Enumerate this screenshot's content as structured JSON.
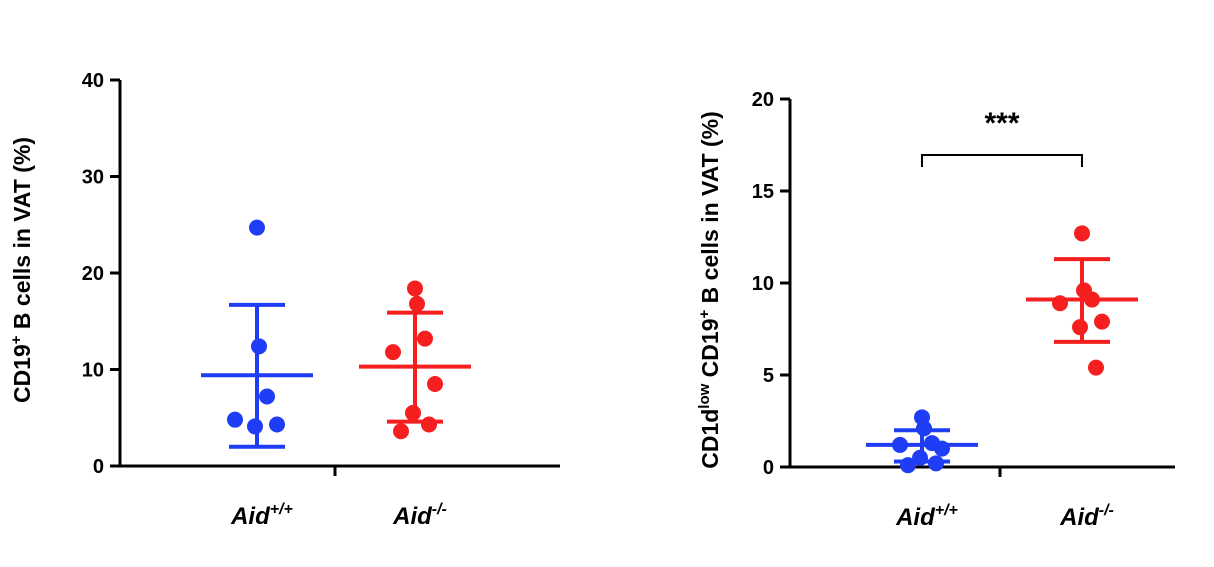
{
  "chart_data": [
    {
      "type": "scatter",
      "ylabel": [
        {
          "text": "CD19"
        },
        {
          "text": "+",
          "sup": true
        },
        {
          "text": " B cells in VAT (%)"
        }
      ],
      "categories": [
        "Aid",
        "Aid"
      ],
      "category_superscripts": [
        "+/+",
        "-/-"
      ],
      "ylim": [
        0,
        40
      ],
      "yticks": [
        0,
        10,
        20,
        30,
        40
      ],
      "series": [
        {
          "color": "#1f3df5",
          "values": [
            24.7,
            12.4,
            7.2,
            4.8,
            4.3,
            4.1
          ],
          "mean": 9.4,
          "error_low": 2.0,
          "error_high": 16.7
        },
        {
          "color": "#f51f1f",
          "values": [
            18.4,
            16.8,
            13.2,
            11.8,
            8.5,
            5.5,
            4.3,
            3.6
          ],
          "mean": 10.3,
          "error_low": 4.6,
          "error_high": 15.9
        }
      ]
    },
    {
      "type": "scatter",
      "ylabel": [
        {
          "text": "CD1d"
        },
        {
          "text": "low",
          "sup": true
        },
        {
          "text": " CD19"
        },
        {
          "text": "+",
          "sup": true
        },
        {
          "text": " B cells in VAT (%)"
        }
      ],
      "categories": [
        "Aid",
        "Aid"
      ],
      "category_superscripts": [
        "+/+",
        "-/-"
      ],
      "ylim": [
        0,
        20
      ],
      "yticks": [
        0,
        5,
        10,
        15,
        20
      ],
      "annotation": "***",
      "series": [
        {
          "color": "#1f3df5",
          "values": [
            2.7,
            2.1,
            1.3,
            1.2,
            1.0,
            0.5,
            0.2,
            0.1
          ],
          "mean": 1.2,
          "error_low": 0.3,
          "error_high": 2.0
        },
        {
          "color": "#f51f1f",
          "values": [
            12.7,
            9.6,
            9.1,
            8.9,
            7.9,
            7.6,
            5.4
          ],
          "mean": 9.1,
          "error_low": 6.8,
          "error_high": 11.3
        }
      ]
    }
  ]
}
